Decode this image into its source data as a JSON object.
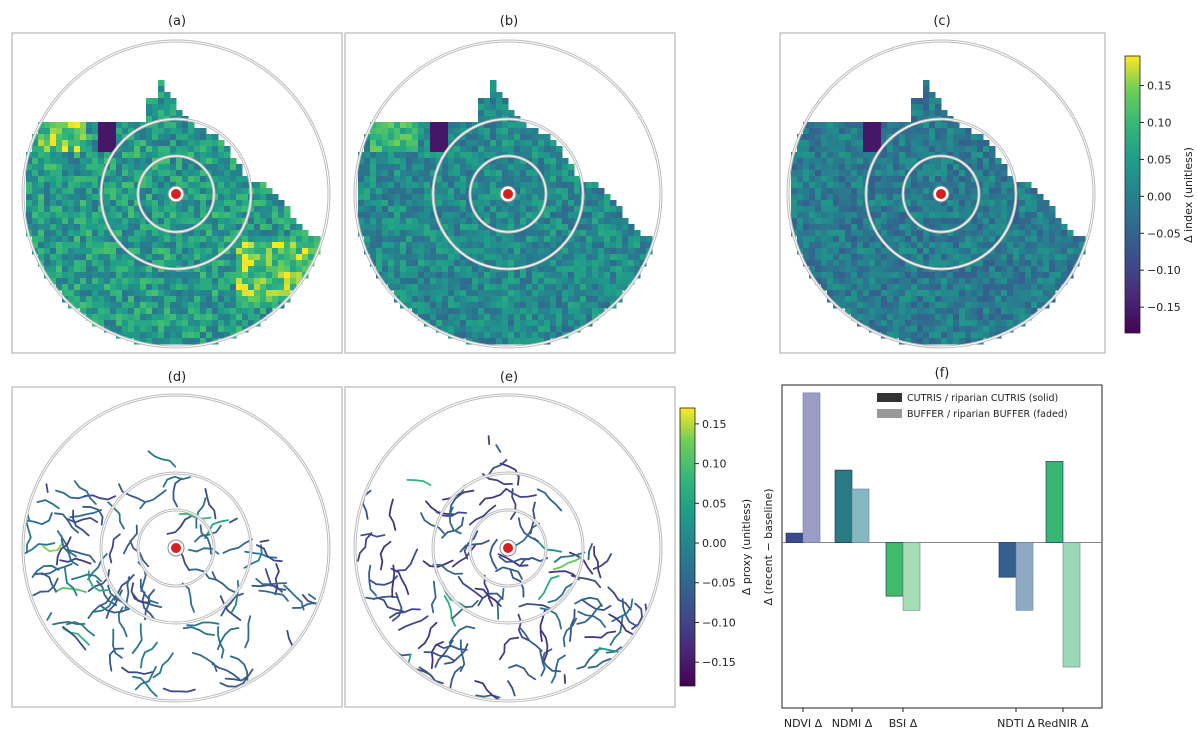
{
  "maps": [
    {
      "label": "(a)",
      "bias": 0.045,
      "spread": 0.07,
      "hotspots": true
    },
    {
      "label": "(b)",
      "bias": 0.015,
      "spread": 0.055,
      "hotspots": true
    },
    {
      "label": "(c)",
      "bias": -0.01,
      "spread": 0.05,
      "hotspots": false
    },
    {
      "label": "(d)",
      "bias": -0.06,
      "spread": 0.05,
      "network": true
    },
    {
      "label": "(e)",
      "bias": -0.08,
      "spread": 0.05,
      "network": true
    }
  ],
  "colorbar_index": {
    "label": "Δ index (unitless)",
    "ticks": [
      "0.15",
      "0.10",
      "0.05",
      "0.00",
      "−0.05",
      "−0.10",
      "−0.15"
    ],
    "range": [
      -0.185,
      0.19
    ]
  },
  "colorbar_proxy": {
    "label": "Δ proxy (unitless)",
    "ticks": [
      "0.15",
      "0.10",
      "0.05",
      "0.00",
      "−0.05",
      "−0.10",
      "−0.15"
    ],
    "range": [
      -0.18,
      0.17
    ]
  },
  "chart_data": {
    "type": "bar",
    "title": "(f)",
    "ylabel": "Δ (recent − baseline)",
    "categories": [
      "NDVI Δ",
      "NDMI Δ",
      "BSI Δ",
      "NDTI Δ",
      "RedNIR Δ"
    ],
    "ylim": [
      -0.21,
      0.2
    ],
    "series": [
      {
        "name": "CUTRIS / riparian CUTRIS (solid)",
        "values": [
          0.012,
          0.092,
          -0.068,
          -0.044,
          0.103
        ]
      },
      {
        "name": "BUFFER / riparian BUFFER (faded)",
        "values": [
          0.19,
          0.068,
          -0.086,
          -0.086,
          -0.158
        ]
      }
    ],
    "colors": [
      {
        "solid": "#3b4a8c",
        "faded": "#9b9dc6"
      },
      {
        "solid": "#2a7a86",
        "faded": "#86b8c2"
      },
      {
        "solid": "#3fbc6b",
        "faded": "#a6ddb5"
      },
      {
        "solid": "#355f8c",
        "faded": "#8fa9c3"
      },
      {
        "solid": "#38b673",
        "faded": "#9bd8b6"
      }
    ],
    "legend_position": "top-right",
    "grid": false
  }
}
